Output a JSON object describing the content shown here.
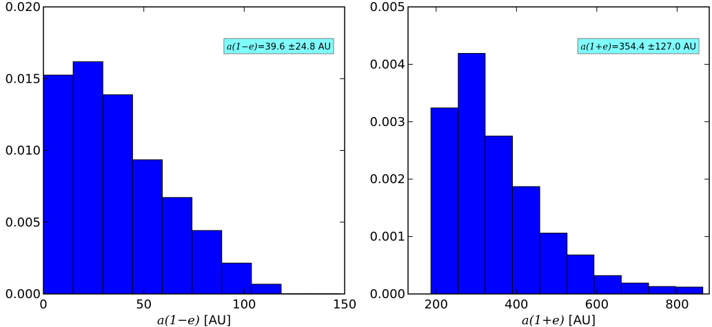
{
  "chart_data": [
    {
      "type": "bar",
      "histogram": true,
      "bin_edges": [
        0,
        14.8,
        29.6,
        44.4,
        59.2,
        74.0,
        88.8,
        103.6,
        118.4,
        133.2,
        148.0
      ],
      "values": [
        0.01525,
        0.01618,
        0.01388,
        0.00935,
        0.00672,
        0.00442,
        0.00215,
        0.00068,
        2e-05,
        2e-05
      ],
      "xlim": [
        0,
        150
      ],
      "ylim": [
        0,
        0.02
      ],
      "xticks": [
        "0",
        "50",
        "100",
        "150"
      ],
      "yticks": [
        "0.000",
        "0.005",
        "0.010",
        "0.015",
        "0.020"
      ],
      "xlabel": {
        "math": "a(1−e)",
        "unit": " [AU]"
      },
      "ylabel": "",
      "title": "",
      "annotation": {
        "math": "a(1−e)",
        "text": "=39.6 ±24.8 AU",
        "placement": "upper-right"
      },
      "bar_color": "#0000ff",
      "annotation_color": "#80ffff",
      "grid": false
    },
    {
      "type": "bar",
      "histogram": true,
      "bin_edges": [
        187,
        255,
        322,
        390,
        458,
        526,
        593,
        661,
        729,
        796,
        864
      ],
      "values": [
        0.00324,
        0.00419,
        0.00275,
        0.00187,
        0.00106,
        0.00068,
        0.00032,
        0.00019,
        0.00013,
        0.00012
      ],
      "xlim": [
        130,
        880
      ],
      "ylim": [
        0,
        0.005
      ],
      "xticks": [
        "200",
        "400",
        "600",
        "800"
      ],
      "yticks": [
        "0.000",
        "0.001",
        "0.002",
        "0.003",
        "0.004",
        "0.005"
      ],
      "xlabel": {
        "math": "a(1+e)",
        "unit": " [AU]"
      },
      "ylabel": "",
      "title": "",
      "annotation": {
        "math": "a(1+e)",
        "text": "=354.4 ±127.0 AU",
        "placement": "upper-right"
      },
      "bar_color": "#0000ff",
      "annotation_color": "#80ffff",
      "grid": false
    }
  ]
}
